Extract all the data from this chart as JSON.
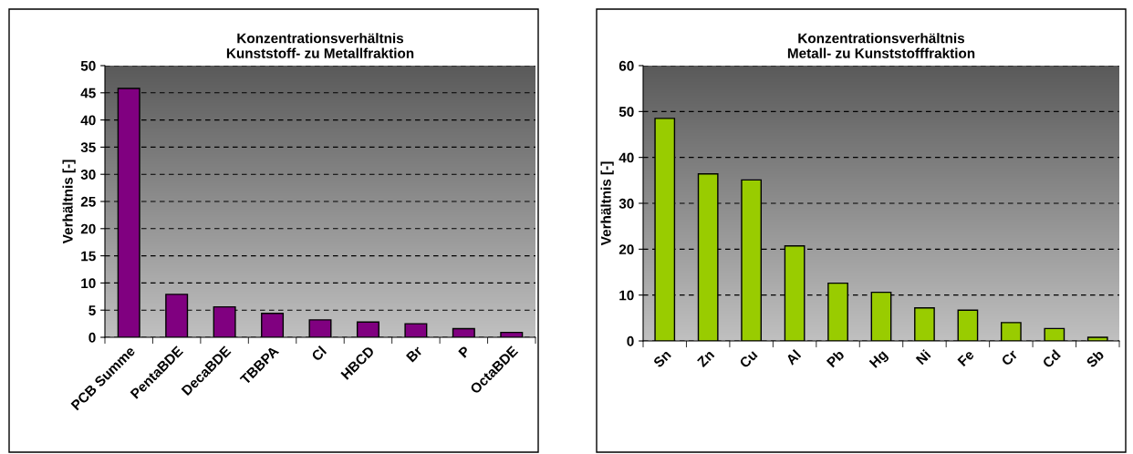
{
  "chart_data": [
    {
      "type": "bar",
      "title": "Konzentrationsverhältnis\nKunststoff- zu Metallfraktion",
      "ylabel": "Verhältnis [-]",
      "categories": [
        "PCB Summe",
        "PentaBDE",
        "DecaBDE",
        "TBBPA",
        "Cl",
        "HBCD",
        "Br",
        "P",
        "OctaBDE"
      ],
      "values": [
        45.8,
        7.9,
        5.6,
        4.4,
        3.2,
        2.8,
        2.5,
        1.6,
        0.9
      ],
      "color": "#800080",
      "ylim": [
        0,
        50
      ],
      "yticks": [
        0,
        5,
        10,
        15,
        20,
        25,
        30,
        35,
        40,
        45,
        50
      ],
      "grid": "y",
      "legend": false
    },
    {
      "type": "bar",
      "title": "Konzentrationsverhältnis\nMetall- zu Kunststofffraktion",
      "ylabel": "Verhältnis [-]",
      "categories": [
        "Sn",
        "Zn",
        "Cu",
        "Al",
        "Pb",
        "Hg",
        "Ni",
        "Fe",
        "Cr",
        "Cd",
        "Sb"
      ],
      "values": [
        48.5,
        36.4,
        35.1,
        20.7,
        12.6,
        10.6,
        7.2,
        6.7,
        4.0,
        2.7,
        0.8
      ],
      "color": "#99cc00",
      "ylim": [
        0,
        60
      ],
      "yticks": [
        0,
        10,
        20,
        30,
        40,
        50,
        60
      ],
      "grid": "y",
      "legend": false
    }
  ]
}
